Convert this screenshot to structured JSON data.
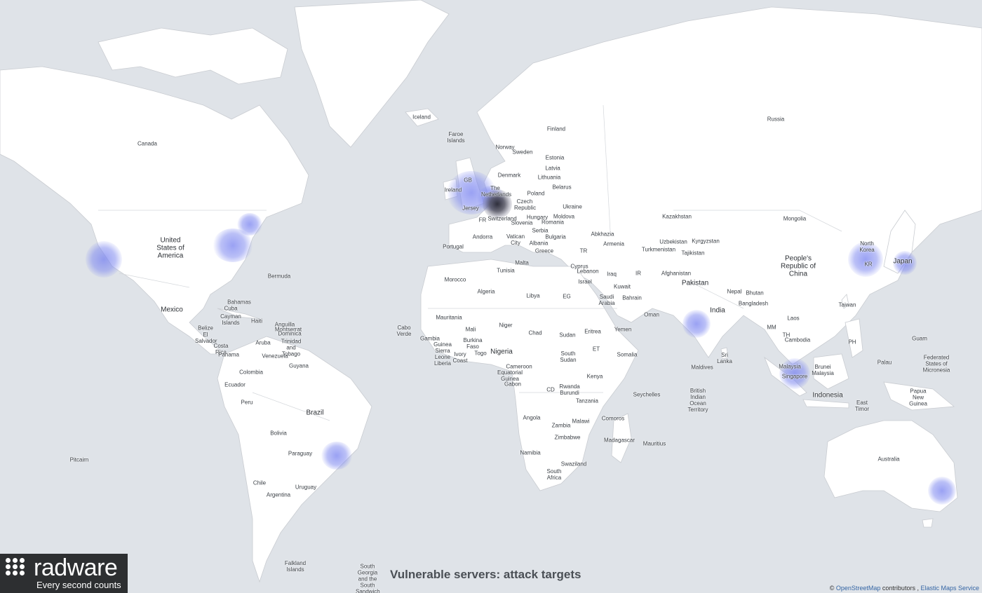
{
  "title": "Vulnerable servers: attack targets",
  "logo": {
    "brand": "radware",
    "tagline": "Every second counts"
  },
  "attribution": {
    "copyright": "©",
    "osm_link": "OpenStreetMap",
    "contributors_text": "contributors ,",
    "ems_link": "Elastic Maps Service"
  },
  "colors": {
    "ocean": "#dfe3e8",
    "land": "#ffffff",
    "hotspot": "#7f8cf0",
    "hotspot_center": "#3a3a48",
    "logo_bg": "#2d2f31"
  },
  "labels": [
    {
      "name": "Canada"
    },
    {
      "name": "Iceland"
    },
    {
      "name": "Faroe Islands"
    },
    {
      "name": "Norway"
    },
    {
      "name": "Sweden"
    },
    {
      "name": "Finland"
    },
    {
      "name": "Russia"
    },
    {
      "name": "Estonia"
    },
    {
      "name": "Latvia"
    },
    {
      "name": "Lithuania"
    },
    {
      "name": "Denmark"
    },
    {
      "name": "Belarus"
    },
    {
      "name": "GB"
    },
    {
      "name": "Ireland"
    },
    {
      "name": "The Netherlands"
    },
    {
      "name": "Jersey"
    },
    {
      "name": "Poland"
    },
    {
      "name": "Czech Republic"
    },
    {
      "name": "Ukraine"
    },
    {
      "name": "Switzerland"
    },
    {
      "name": "FR"
    },
    {
      "name": "Moldova"
    },
    {
      "name": "Slovenia"
    },
    {
      "name": "Hungary"
    },
    {
      "name": "Romania"
    },
    {
      "name": "Serbia"
    },
    {
      "name": "Bulgaria"
    },
    {
      "name": "Andorra"
    },
    {
      "name": "Vatican City"
    },
    {
      "name": "Albania"
    },
    {
      "name": "Portugal"
    },
    {
      "name": "Greece"
    },
    {
      "name": "TR"
    },
    {
      "name": "Abkhazia"
    },
    {
      "name": "Armenia"
    },
    {
      "name": "Kazakhstan"
    },
    {
      "name": "Mongolia"
    },
    {
      "name": "Uzbekistan"
    },
    {
      "name": "Kyrgyzstan"
    },
    {
      "name": "Turkmenistan"
    },
    {
      "name": "Tajikistan"
    },
    {
      "name": "North Korea"
    },
    {
      "name": "KR"
    },
    {
      "name": "Japan"
    },
    {
      "name": "People's Republic of China"
    },
    {
      "name": "United States of America"
    },
    {
      "name": "Bermuda"
    },
    {
      "name": "Mexico"
    },
    {
      "name": "Bahamas"
    },
    {
      "name": "Cuba"
    },
    {
      "name": "Cayman Islands"
    },
    {
      "name": "Haiti"
    },
    {
      "name": "Anguilla"
    },
    {
      "name": "Montserrat"
    },
    {
      "name": "Dominica"
    },
    {
      "name": "Belize"
    },
    {
      "name": "El Salvador"
    },
    {
      "name": "Costa Rica"
    },
    {
      "name": "Panama"
    },
    {
      "name": "Trinidad and Tobago"
    },
    {
      "name": "Aruba"
    },
    {
      "name": "Venezuela"
    },
    {
      "name": "Guyana"
    },
    {
      "name": "Colombia"
    },
    {
      "name": "Ecuador"
    },
    {
      "name": "Peru"
    },
    {
      "name": "Brazil"
    },
    {
      "name": "Bolivia"
    },
    {
      "name": "Paraguay"
    },
    {
      "name": "Chile"
    },
    {
      "name": "Argentina"
    },
    {
      "name": "Uruguay"
    },
    {
      "name": "Pitcairn"
    },
    {
      "name": "Falkland Islands"
    },
    {
      "name": "South Georgia and the South Sandwich"
    },
    {
      "name": "Cabo Verde"
    },
    {
      "name": "Morocco"
    },
    {
      "name": "Malta"
    },
    {
      "name": "Tunisia"
    },
    {
      "name": "Algeria"
    },
    {
      "name": "Libya"
    },
    {
      "name": "EG"
    },
    {
      "name": "Mauritania"
    },
    {
      "name": "Mali"
    },
    {
      "name": "Niger"
    },
    {
      "name": "Chad"
    },
    {
      "name": "Sudan"
    },
    {
      "name": "Eritrea"
    },
    {
      "name": "Yemen"
    },
    {
      "name": "Gambia"
    },
    {
      "name": "Guinea Sierra Leone Liberia"
    },
    {
      "name": "Burkina Faso"
    },
    {
      "name": "Ivory Coast"
    },
    {
      "name": "Togo"
    },
    {
      "name": "Nigeria"
    },
    {
      "name": "Cameroon"
    },
    {
      "name": "Equatorial Guinea"
    },
    {
      "name": "Gabon"
    },
    {
      "name": "CD"
    },
    {
      "name": "South Sudan"
    },
    {
      "name": "ET"
    },
    {
      "name": "Somalia"
    },
    {
      "name": "Kenya"
    },
    {
      "name": "Rwanda Burundi"
    },
    {
      "name": "Tanzania"
    },
    {
      "name": "Angola"
    },
    {
      "name": "Zambia"
    },
    {
      "name": "Malawi"
    },
    {
      "name": "Zimbabwe"
    },
    {
      "name": "Namibia"
    },
    {
      "name": "Swaziland"
    },
    {
      "name": "South Africa"
    },
    {
      "name": "Comoros"
    },
    {
      "name": "Madagascar"
    },
    {
      "name": "Mauritius"
    },
    {
      "name": "Seychelles"
    },
    {
      "name": "Cyprus"
    },
    {
      "name": "Lebanon"
    },
    {
      "name": "Israel"
    },
    {
      "name": "Iraq"
    },
    {
      "name": "IR"
    },
    {
      "name": "Kuwait"
    },
    {
      "name": "Bahrain"
    },
    {
      "name": "Saudi Arabia"
    },
    {
      "name": "Oman"
    },
    {
      "name": "Afghanistan"
    },
    {
      "name": "Pakistan"
    },
    {
      "name": "India"
    },
    {
      "name": "Nepal"
    },
    {
      "name": "Bhutan"
    },
    {
      "name": "Bangladesh"
    },
    {
      "name": "MM"
    },
    {
      "name": "Laos"
    },
    {
      "name": "TH"
    },
    {
      "name": "Cambodia"
    },
    {
      "name": "Taiwan"
    },
    {
      "name": "PH"
    },
    {
      "name": "Sri Lanka"
    },
    {
      "name": "Maldives"
    },
    {
      "name": "British Indian Ocean Territory"
    },
    {
      "name": "Malaysia"
    },
    {
      "name": "Singapore"
    },
    {
      "name": "Brunei Malaysia"
    },
    {
      "name": "Indonesia"
    },
    {
      "name": "East Timor"
    },
    {
      "name": "Guam"
    },
    {
      "name": "Palau"
    },
    {
      "name": "Federated States of Micronesia"
    },
    {
      "name": "Papua New Guinea"
    },
    {
      "name": "Australia"
    }
  ],
  "hotspots": [
    {
      "name": "San Francisco"
    },
    {
      "name": "New York"
    },
    {
      "name": "Montreal"
    },
    {
      "name": "London"
    },
    {
      "name": "Amsterdam"
    },
    {
      "name": "Frankfurt"
    },
    {
      "name": "Mumbai"
    },
    {
      "name": "Singapore"
    },
    {
      "name": "Seoul"
    },
    {
      "name": "Tokyo"
    },
    {
      "name": "São Paulo"
    },
    {
      "name": "Sydney"
    }
  ]
}
